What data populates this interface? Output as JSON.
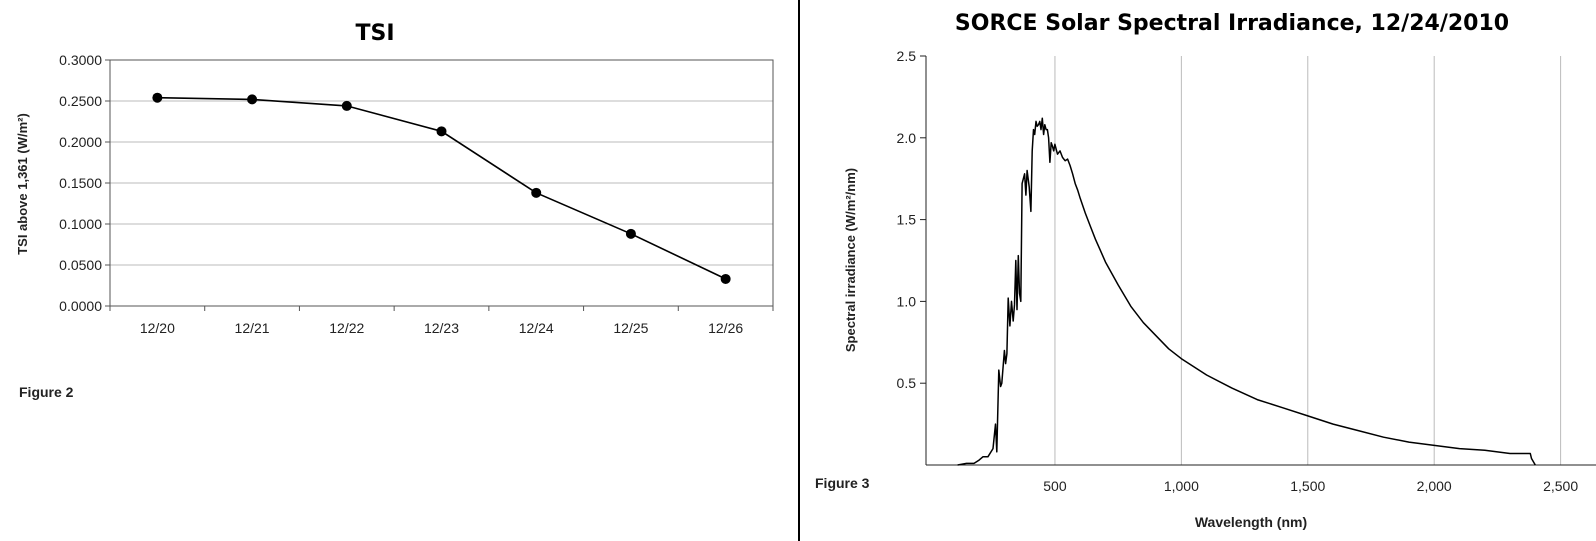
{
  "chart_data": [
    {
      "type": "line",
      "title": "TSI",
      "ylabel": "TSI above 1,361 (W/m²)",
      "xlabel": "",
      "caption": "Figure 2",
      "categories": [
        "12/20",
        "12/21",
        "12/22",
        "12/23",
        "12/24",
        "12/25",
        "12/26"
      ],
      "values": [
        0.254,
        0.252,
        0.244,
        0.213,
        0.138,
        0.088,
        0.033
      ],
      "ylim": [
        0,
        0.3
      ],
      "yticks": [
        "0.0000",
        "0.0500",
        "0.1000",
        "0.1500",
        "0.2000",
        "0.2500",
        "0.3000"
      ],
      "grid": true,
      "markers": true
    },
    {
      "type": "line",
      "title": "SORCE Solar Spectral Irradiance, 12/24/2010",
      "xlabel": "Wavelength (nm)",
      "ylabel": "Spectral irradiance (W/m²/nm)",
      "caption": "Figure 3",
      "xlim": [
        -10,
        2640
      ],
      "ylim": [
        0,
        2.5
      ],
      "xticks": [
        500,
        1000,
        1500,
        2000,
        2500
      ],
      "xtick_labels": [
        "500",
        "1,000",
        "1,500",
        "2,000",
        "2,500"
      ],
      "yticks": [
        0.5,
        1.0,
        1.5,
        2.0,
        2.5
      ],
      "ytick_labels": [
        "0.5",
        "1.0",
        "1.5",
        "2.0",
        "2.5"
      ],
      "grid": "vertical",
      "x": [
        115,
        150,
        180,
        200,
        215,
        235,
        255,
        265,
        270,
        278,
        285,
        290,
        300,
        305,
        310,
        315,
        322,
        328,
        335,
        340,
        345,
        350,
        355,
        360,
        365,
        370,
        380,
        385,
        390,
        398,
        405,
        410,
        415,
        420,
        425,
        430,
        435,
        440,
        445,
        450,
        455,
        460,
        465,
        470,
        475,
        480,
        485,
        490,
        495,
        500,
        510,
        520,
        530,
        540,
        550,
        560,
        570,
        580,
        590,
        600,
        620,
        640,
        660,
        680,
        700,
        750,
        800,
        850,
        900,
        950,
        1000,
        1100,
        1200,
        1300,
        1400,
        1500,
        1600,
        1700,
        1800,
        1900,
        2000,
        2100,
        2200,
        2300,
        2380,
        2385,
        2400
      ],
      "y": [
        0.0,
        0.01,
        0.01,
        0.03,
        0.05,
        0.05,
        0.1,
        0.25,
        0.08,
        0.58,
        0.48,
        0.5,
        0.7,
        0.62,
        0.68,
        1.02,
        0.85,
        1.0,
        0.88,
        0.98,
        1.25,
        0.95,
        1.28,
        1.05,
        1.0,
        1.72,
        1.78,
        1.65,
        1.8,
        1.7,
        1.55,
        1.92,
        2.05,
        2.02,
        2.1,
        2.07,
        2.08,
        2.1,
        2.05,
        2.12,
        2.02,
        2.08,
        2.05,
        2.05,
        2.0,
        1.85,
        1.97,
        1.95,
        1.92,
        1.96,
        1.9,
        1.92,
        1.88,
        1.86,
        1.87,
        1.83,
        1.78,
        1.72,
        1.68,
        1.63,
        1.54,
        1.46,
        1.38,
        1.31,
        1.24,
        1.1,
        0.97,
        0.87,
        0.79,
        0.71,
        0.65,
        0.55,
        0.47,
        0.4,
        0.35,
        0.3,
        0.25,
        0.21,
        0.17,
        0.14,
        0.12,
        0.1,
        0.09,
        0.07,
        0.07,
        0.04,
        0.0
      ]
    }
  ]
}
